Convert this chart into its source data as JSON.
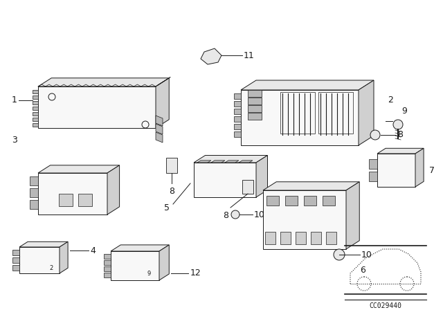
{
  "background_color": "#ffffff",
  "diagram_code": "CC029440",
  "line_color": "#1a1a1a",
  "face_light": "#f8f8f8",
  "face_mid": "#e8e8e8",
  "face_dark": "#d0d0d0",
  "face_darker": "#b8b8b8"
}
